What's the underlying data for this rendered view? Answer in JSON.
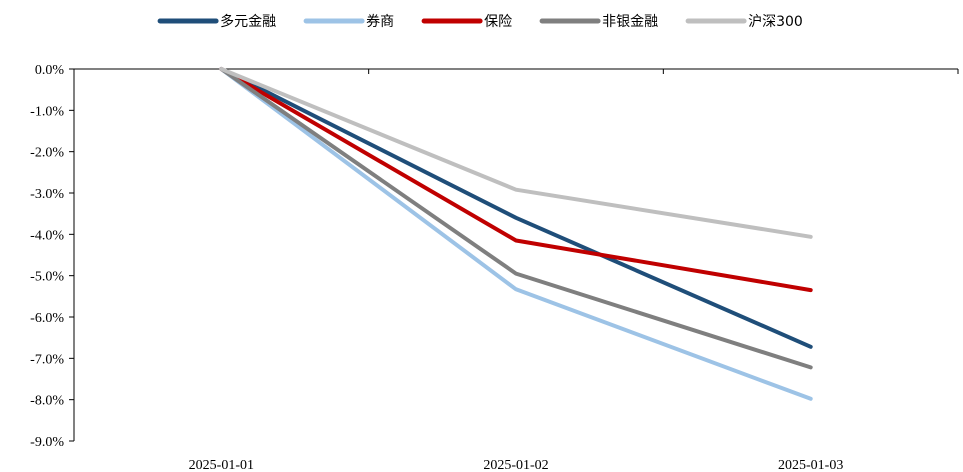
{
  "chart_data": {
    "type": "line",
    "title": "",
    "xlabel": "",
    "ylabel": "",
    "categories": [
      "2025-01-01",
      "2025-01-02",
      "2025-01-03"
    ],
    "ylim": [
      -9.0,
      0.0
    ],
    "yticks": [
      0,
      -1,
      -2,
      -3,
      -4,
      -5,
      -6,
      -7,
      -8,
      -9
    ],
    "ytick_labels": [
      "0.0%",
      "-1.0%",
      "-2.0%",
      "-3.0%",
      "-4.0%",
      "-5.0%",
      "-6.0%",
      "-7.0%",
      "-8.0%",
      "-9.0%"
    ],
    "x_axis_position": 0,
    "legend_position": "top",
    "grid": false,
    "series": [
      {
        "name": "多元金融",
        "color": "#1F4E79",
        "values": [
          0.0,
          -3.6,
          -6.72
        ]
      },
      {
        "name": "券商",
        "color": "#9DC3E6",
        "values": [
          0.0,
          -5.33,
          -7.98
        ]
      },
      {
        "name": "保险",
        "color": "#C00000",
        "values": [
          0.0,
          -4.15,
          -5.35
        ]
      },
      {
        "name": "非银金融",
        "color": "#7F7F7F",
        "values": [
          0.0,
          -4.95,
          -7.22
        ]
      },
      {
        "name": "沪深300",
        "color": "#BFBFBF",
        "values": [
          0.0,
          -2.92,
          -4.06
        ]
      }
    ]
  }
}
